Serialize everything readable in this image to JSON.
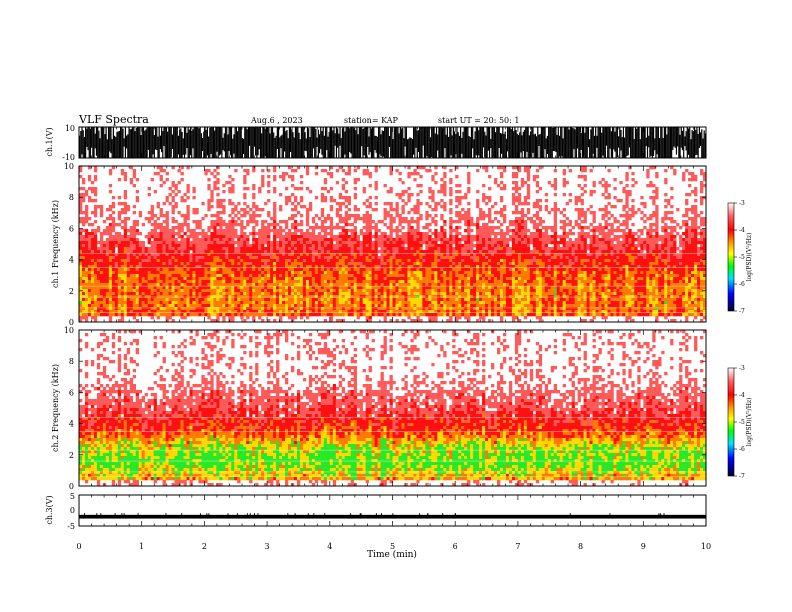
{
  "header": {
    "title": "VLF Spectra",
    "date": "Aug.6 , 2023",
    "station": "station= KAP",
    "start": "start UT = 20: 50: 1"
  },
  "colors": {
    "spectrogram_background": "#ffffff",
    "colorscale": [
      "#ffffff",
      "#ff4040",
      "#ff0000",
      "#ff8000",
      "#ffff00",
      "#00ff00",
      "#00c0ff",
      "#0000ff",
      "#000040"
    ]
  },
  "chart_data": [
    {
      "type": "line",
      "name": "ch1-waveform",
      "ylabel": "ch.1(V)",
      "ylim": [
        -10,
        10
      ],
      "yticks": [
        "10",
        "-10"
      ],
      "xlim": [
        0,
        10
      ],
      "description_of_signal": "saturated broadband waveform spanning nearly the full range"
    },
    {
      "type": "heatmap",
      "name": "ch1-spectrogram",
      "ylabel": "ch.1 Frequency (kHz)",
      "ylim": [
        0,
        10
      ],
      "yticks": [
        "0",
        "2",
        "4",
        "6",
        "8",
        "10"
      ],
      "xlim": [
        0,
        10
      ],
      "colorbar": {
        "label": "log(PSD)(V²/Hz)",
        "range": [
          -7,
          -3
        ],
        "ticks": [
          "-3",
          "-4",
          "-5",
          "-6",
          "-7"
        ]
      },
      "profile": [
        {
          "freq_khz": 0.3,
          "level": -4.0
        },
        {
          "freq_khz": 1.5,
          "level": -4.1
        },
        {
          "freq_khz": 3.0,
          "level": -4.0
        },
        {
          "freq_khz": 4.5,
          "level": -3.6
        },
        {
          "freq_khz": 6.0,
          "level": -3.2
        },
        {
          "freq_khz": 8.0,
          "level": -3.0
        },
        {
          "freq_khz": 10.0,
          "level": -3.0
        }
      ]
    },
    {
      "type": "heatmap",
      "name": "ch2-spectrogram",
      "ylabel": "ch.2 Frequency (kHz)",
      "ylim": [
        0,
        10
      ],
      "yticks": [
        "0",
        "2",
        "4",
        "6",
        "8",
        "10"
      ],
      "xlim": [
        0,
        10
      ],
      "colorbar": {
        "label": "log(PSD)(V²/Hz)",
        "range": [
          -7,
          -3
        ],
        "ticks": [
          "-3",
          "-4",
          "-5",
          "-6",
          "-7"
        ]
      },
      "profile": [
        {
          "freq_khz": 0.3,
          "level": -4.2
        },
        {
          "freq_khz": 1.5,
          "level": -4.7
        },
        {
          "freq_khz": 2.5,
          "level": -4.5
        },
        {
          "freq_khz": 3.5,
          "level": -3.9
        },
        {
          "freq_khz": 5.0,
          "level": -3.4
        },
        {
          "freq_khz": 7.0,
          "level": -3.0
        },
        {
          "freq_khz": 10.0,
          "level": -3.0
        }
      ]
    },
    {
      "type": "line",
      "name": "ch3-waveform",
      "ylabel": "ch.3(V)",
      "ylim": [
        -5,
        5
      ],
      "yticks": [
        "5",
        "0",
        "-5"
      ],
      "xlim": [
        0,
        10
      ],
      "level": -2
    }
  ],
  "xaxis": {
    "label": "Time (min)",
    "range": [
      0,
      10
    ],
    "ticks": [
      "0",
      "1",
      "2",
      "3",
      "4",
      "5",
      "6",
      "7",
      "8",
      "9",
      "10"
    ]
  }
}
